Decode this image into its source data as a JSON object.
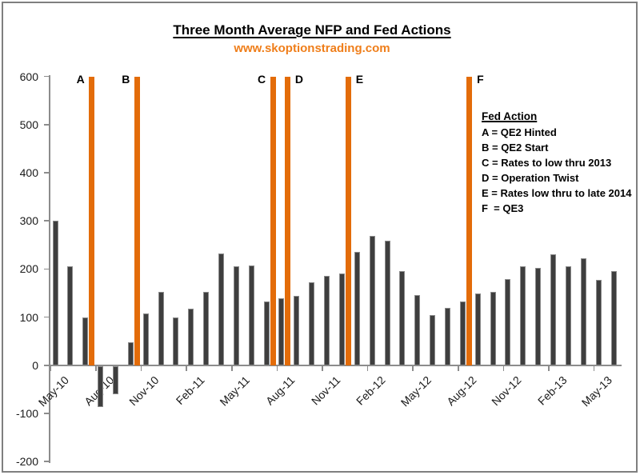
{
  "title": "Three Month Average NFP and Fed Actions",
  "subtitle": "www.skoptionstrading.com",
  "colors": {
    "accent_orange": "#e36c09",
    "subtitle_orange": "#ef7e1a",
    "bar_gray": "#3e3e3e",
    "bar_border": "#8b8b8b",
    "axis_gray": "#8c8c8c",
    "frame_gray": "#7f7f7f"
  },
  "legend": {
    "header": "Fed Action",
    "items": [
      "A = QE2 Hinted",
      "B = QE2 Start",
      "C = Rates to low thru 2013",
      "D = Operation Twist",
      "E = Rates low thru to late 2014",
      "F  = QE3"
    ]
  },
  "chart_data": {
    "type": "bar",
    "title": "Three Month Average NFP and Fed Actions",
    "subtitle": "www.skoptionstrading.com",
    "xlabel": "",
    "ylabel": "",
    "ylim": [
      -200,
      600
    ],
    "y_ticks": [
      600,
      500,
      400,
      300,
      200,
      100,
      0,
      -100,
      -200
    ],
    "grid": false,
    "categories": [
      "May-10",
      "Jun-10",
      "Jul-10",
      "Aug-10",
      "Sep-10",
      "Oct-10",
      "Nov-10",
      "Dec-10",
      "Jan-11",
      "Feb-11",
      "Mar-11",
      "Apr-11",
      "May-11",
      "Jun-11",
      "Jul-11",
      "Aug-11",
      "Sep-11",
      "Oct-11",
      "Nov-11",
      "Dec-11",
      "Jan-12",
      "Feb-12",
      "Mar-12",
      "Apr-12",
      "May-12",
      "Jun-12",
      "Jul-12",
      "Aug-12",
      "Sep-12",
      "Oct-12",
      "Nov-12",
      "Dec-12",
      "Jan-13",
      "Feb-13",
      "Mar-13",
      "Apr-13",
      "May-13",
      "Jun-13"
    ],
    "values": [
      300,
      205,
      100,
      -85,
      -58,
      48,
      108,
      153,
      100,
      118,
      153,
      232,
      206,
      208,
      133,
      139,
      144,
      172,
      186,
      190,
      236,
      268,
      258,
      196,
      146,
      104,
      119,
      132,
      149,
      153,
      179,
      206,
      203,
      231,
      206,
      223,
      178,
      196
    ],
    "x_tick_labels": [
      "May-10",
      "Aug-10",
      "Nov-10",
      "Feb-11",
      "May-11",
      "Aug-11",
      "Nov-11",
      "Feb-12",
      "May-12",
      "Aug-12",
      "Nov-12",
      "Feb-13",
      "May-13"
    ],
    "fed_actions": [
      {
        "letter": "A",
        "after_month": "Jul-10",
        "description": "QE2 Hinted",
        "label_side": "left",
        "bar_value": 600
      },
      {
        "letter": "B",
        "after_month": "Oct-10",
        "description": "QE2 Start",
        "label_side": "left",
        "bar_value": 600
      },
      {
        "letter": "C",
        "after_month": "Jul-11",
        "description": "Rates to low thru 2013",
        "label_side": "left",
        "bar_value": 600
      },
      {
        "letter": "D",
        "after_month": "Aug-11",
        "description": "Operation Twist",
        "label_side": "right",
        "bar_value": 600
      },
      {
        "letter": "E",
        "after_month": "Dec-11",
        "description": "Rates low thru to late 2014",
        "label_side": "right",
        "bar_value": 600
      },
      {
        "letter": "F",
        "after_month": "Aug-12",
        "description": "QE3",
        "label_side": "right",
        "bar_value": 600
      }
    ],
    "legend_position": "upper-right-inside"
  }
}
